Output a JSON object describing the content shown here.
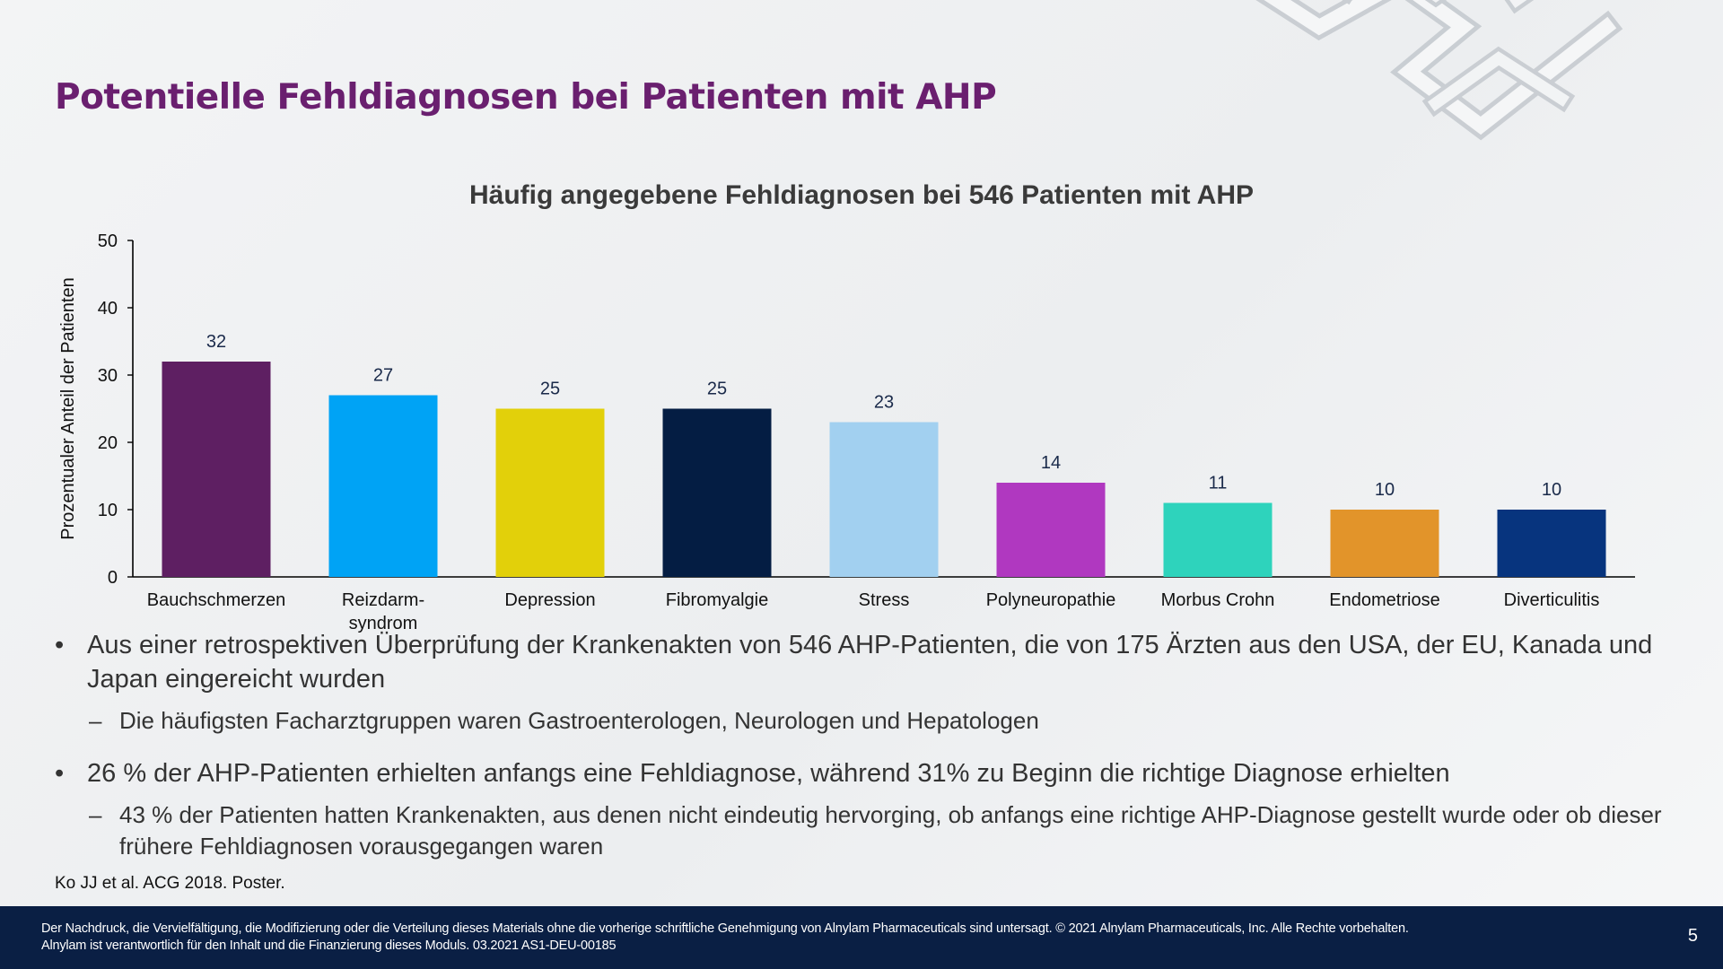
{
  "slide": {
    "title": "Potentielle Fehldiagnosen bei Patienten mit AHP",
    "page_number": "5"
  },
  "chart_data": {
    "type": "bar",
    "title": "Häufig angegebene Fehldiagnosen bei 546 Patienten mit AHP",
    "ylabel": "Prozentualer Anteil der Patienten",
    "xlabel": "",
    "ylim": [
      0,
      50
    ],
    "yticks": [
      0,
      10,
      20,
      30,
      40,
      50
    ],
    "categories": [
      "Bauchschmerzen",
      "Reizdarm-\nsyndrom",
      "Depression",
      "Fibromyalgie",
      "Stress",
      "Polyneuropathie",
      "Morbus Crohn",
      "Endometriose",
      "Diverticulitis"
    ],
    "values": [
      32,
      27,
      25,
      25,
      23,
      14,
      11,
      10,
      10
    ],
    "colors": [
      "#5e1f62",
      "#00a3f5",
      "#e2d00a",
      "#041d43",
      "#a2d0f0",
      "#b038c0",
      "#2ed3bc",
      "#e2942a",
      "#07347e"
    ],
    "grid": false,
    "legend": "none"
  },
  "bullets": [
    {
      "text": "Aus einer retrospektiven Überprüfung der Krankenakten von 546 AHP-Patienten, die von 175 Ärzten aus den USA, der EU, Kanada und Japan eingereicht wurden",
      "sub": [
        "Die häufigsten Facharztgruppen waren Gastroenterologen, Neurologen und Hepatologen"
      ]
    },
    {
      "text": "26 % der AHP-Patienten erhielten anfangs eine Fehldiagnose, während 31% zu Beginn die richtige Diagnose erhielten",
      "sub": [
        "43 % der Patienten hatten Krankenakten, aus denen nicht eindeutig hervorging, ob anfangs eine richtige AHP-Diagnose gestellt wurde oder ob dieser frühere Fehldiagnosen vorausgegangen waren"
      ]
    }
  ],
  "bullet_marker": "•",
  "sub_marker": "–",
  "reference": "Ko JJ et al. ACG 2018. Poster.",
  "footer": {
    "legal_line1": "Der Nachdruck, die Vervielfältigung, die Modifizierung oder die Verteilung dieses Materials ohne die vorherige schriftliche Genehmigung von Alnylam Pharmaceuticals sind untersagt. © 2021 Alnylam Pharmaceuticals, Inc. Alle Rechte vorbehalten.",
    "legal_line2": "Alnylam ist verantwortlich für den Inhalt und die Finanzierung dieses Moduls. 03.2021 AS1-DEU-00185"
  }
}
